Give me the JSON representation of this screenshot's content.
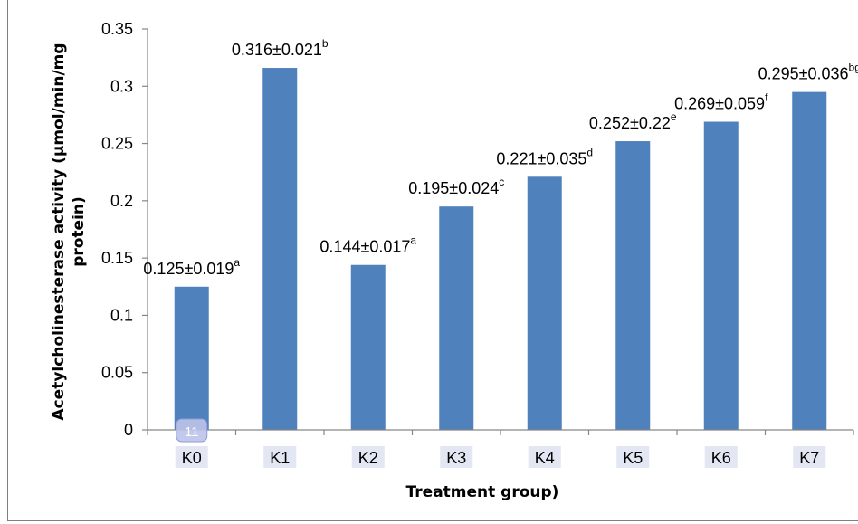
{
  "chart_data": {
    "type": "bar",
    "title": "",
    "xlabel": "Treatment group)",
    "ylabel_lines": [
      "Acetylcholinesterase activity (µmol/min/mg",
      "protein)"
    ],
    "ylim": [
      0,
      0.35
    ],
    "yticks": [
      "0",
      "0.05",
      "0.1",
      "0.15",
      "0.2",
      "0.25",
      "0.3",
      "0.35"
    ],
    "categories": [
      "K0",
      "K1",
      "K2",
      "K3",
      "K4",
      "K5",
      "K6",
      "K7"
    ],
    "values": [
      0.125,
      0.316,
      0.144,
      0.195,
      0.221,
      0.252,
      0.269,
      0.295
    ],
    "data_labels": [
      {
        "text": "0.125±0.019",
        "sup": "a"
      },
      {
        "text": "0.316±0.021",
        "sup": "b"
      },
      {
        "text": "0.144±0.017",
        "sup": "a"
      },
      {
        "text": "0.195±0.024",
        "sup": "c"
      },
      {
        "text": "0.221±0.035",
        "sup": "d"
      },
      {
        "text": "0.252±0.22",
        "sup": "e"
      },
      {
        "text": "0.269±0.059",
        "sup": "f"
      },
      {
        "text": "0.295±0.036",
        "sup": "bg"
      }
    ],
    "grid": false,
    "legend": "none",
    "bar_color": "#4f81bd",
    "overlay_badge": "11"
  }
}
